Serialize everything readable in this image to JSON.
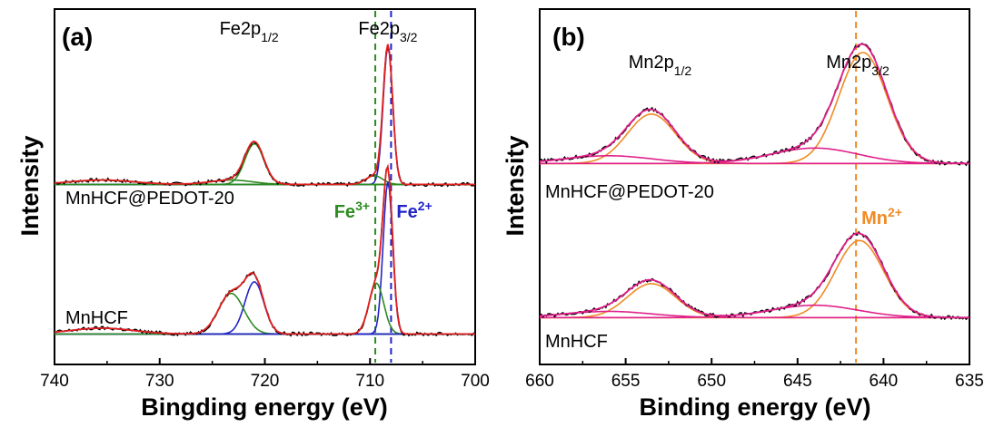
{
  "chart_data": [
    {
      "type": "line",
      "panel_label": "(a)",
      "xlabel": "Bingding energy (eV)",
      "ylabel": "Intensity",
      "xlim": [
        740,
        700
      ],
      "xticks": [
        740,
        730,
        720,
        710,
        700
      ],
      "peak_labels": [
        {
          "main": "Fe2p",
          "sub": "1/2",
          "x": 721.5
        },
        {
          "main": "Fe2p",
          "sub": "3/2",
          "x": 708.3
        }
      ],
      "state_labels": [
        {
          "main": "Fe",
          "sup": "3+",
          "x": 709.5,
          "color": "#2e8b22"
        },
        {
          "main": "Fe",
          "sup": "2+",
          "x": 708.0,
          "color": "#2323c8"
        }
      ],
      "reference_lines": [
        {
          "x": 709.5,
          "color": "#2e8b22"
        },
        {
          "x": 708.0,
          "color": "#2323c8"
        }
      ],
      "samples": [
        {
          "label": "MnHCF@PEDOT-20",
          "baseline": 0.62,
          "background_slope": 0.02,
          "components": [
            {
              "center": 721.0,
              "height": 0.28,
              "width": 0.9,
              "color": "#2e8b22"
            },
            {
              "center": 723.2,
              "height": 0.03,
              "width": 2.0,
              "color": "#2e8b22"
            },
            {
              "center": 708.3,
              "height": 0.95,
              "width": 0.45,
              "color": "#2323c8"
            },
            {
              "center": 709.6,
              "height": 0.06,
              "width": 0.8,
              "color": "#2e8b22"
            },
            {
              "center": 735.5,
              "height": 0.03,
              "width": 3.0,
              "color": "#2e8b22"
            }
          ],
          "envelope_color": "#e01f1f",
          "background_color": "#2e8b22"
        },
        {
          "label": "MnHCF",
          "baseline": 0.0,
          "background_slope": 0.02,
          "components": [
            {
              "center": 721.0,
              "height": 0.36,
              "width": 0.9,
              "color": "#2323c8"
            },
            {
              "center": 723.2,
              "height": 0.28,
              "width": 1.2,
              "color": "#2e8b22"
            },
            {
              "center": 708.3,
              "height": 1.05,
              "width": 0.45,
              "color": "#2323c8"
            },
            {
              "center": 709.4,
              "height": 0.35,
              "width": 0.7,
              "color": "#2e8b22"
            },
            {
              "center": 735.5,
              "height": 0.04,
              "width": 3.0,
              "color": "#2323c8"
            }
          ],
          "envelope_color": "#e01f1f",
          "background_color": "#2323c8"
        }
      ]
    },
    {
      "type": "line",
      "panel_label": "(b)",
      "xlabel": "Binding energy (eV)",
      "ylabel": "Intensity",
      "xlim": [
        660,
        635
      ],
      "xticks": [
        660,
        655,
        650,
        645,
        640,
        635
      ],
      "peak_labels": [
        {
          "main": "Mn2p",
          "sub": "1/2",
          "x": 653.0
        },
        {
          "main": "Mn2p",
          "sub": "3/2",
          "x": 641.5
        }
      ],
      "state_labels": [
        {
          "main": "Mn",
          "sup": "2+",
          "x": 641.6,
          "color": "#f08a24"
        }
      ],
      "reference_lines": [
        {
          "x": 641.6,
          "color": "#f08a24"
        }
      ],
      "samples": [
        {
          "label": "MnHCF@PEDOT-20",
          "baseline": 0.6,
          "components": [
            {
              "center": 653.5,
              "height": 0.32,
              "width": 1.4,
              "color": "#f08a24"
            },
            {
              "center": 641.2,
              "height": 0.72,
              "width": 1.4,
              "color": "#f08a24"
            },
            {
              "center": 656.0,
              "height": 0.05,
              "width": 2.5,
              "color": "#e0208a"
            },
            {
              "center": 644.0,
              "height": 0.1,
              "width": 2.5,
              "color": "#e0208a"
            }
          ],
          "envelope_color": "#e0208a",
          "background_color": "#f08a24"
        },
        {
          "label": "MnHCF",
          "baseline": 0.0,
          "components": [
            {
              "center": 653.5,
              "height": 0.22,
              "width": 1.4,
              "color": "#f08a24"
            },
            {
              "center": 641.4,
              "height": 0.5,
              "width": 1.4,
              "color": "#f08a24"
            },
            {
              "center": 656.0,
              "height": 0.04,
              "width": 2.5,
              "color": "#e0208a"
            },
            {
              "center": 644.0,
              "height": 0.08,
              "width": 2.5,
              "color": "#e0208a"
            }
          ],
          "envelope_color": "#e0208a",
          "background_color": "#f08a24"
        }
      ]
    }
  ]
}
